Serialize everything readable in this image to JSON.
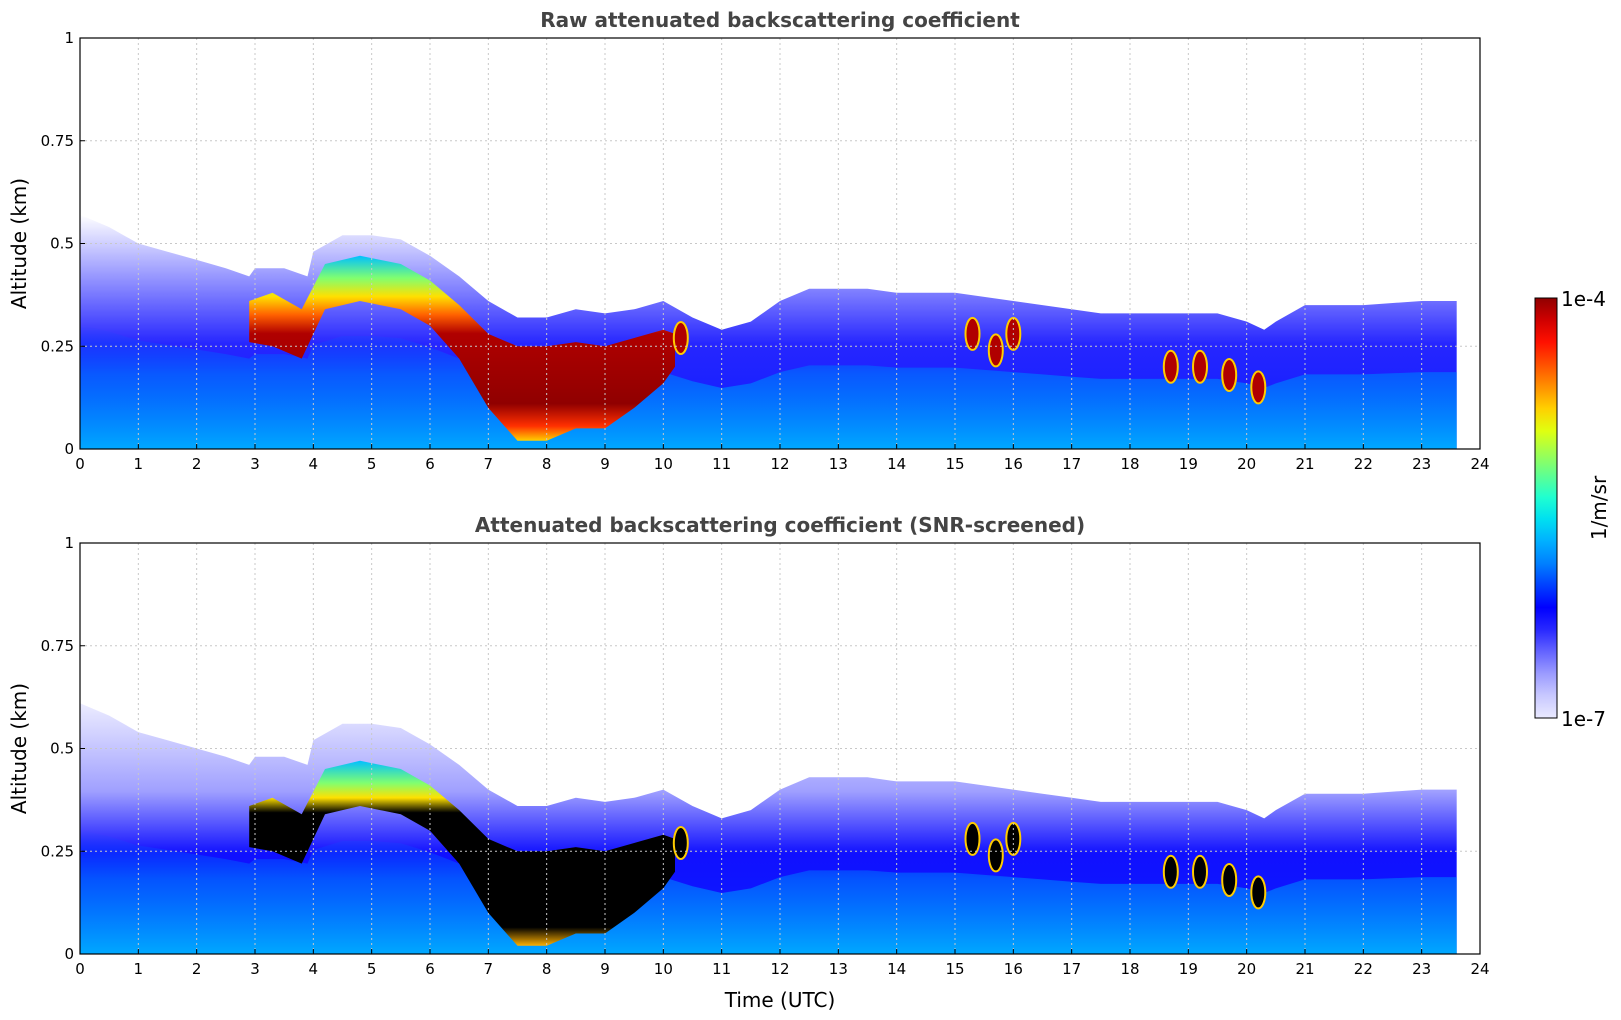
{
  "chart_data": [
    {
      "type": "heatmap",
      "title": "Raw attenuated backscattering coefficient",
      "xlabel": "",
      "ylabel": "Altitude (km)",
      "xlim": [
        0,
        24
      ],
      "ylim": [
        0,
        1
      ],
      "x_ticks": [
        "0",
        "1",
        "2",
        "3",
        "4",
        "5",
        "6",
        "7",
        "8",
        "9",
        "10",
        "11",
        "12",
        "13",
        "14",
        "15",
        "16",
        "17",
        "18",
        "19",
        "20",
        "21",
        "22",
        "23",
        "24"
      ],
      "y_ticks": [
        "0",
        "0.25",
        "0.5",
        "0.75",
        "1"
      ],
      "grid": true,
      "colormap": "jet",
      "color_scale": "log",
      "value_range": [
        "1e-7",
        "1e-4"
      ],
      "data_extent_hours": [
        0,
        23.6
      ],
      "layer_top_km": {
        "x": [
          0,
          0.5,
          1,
          1.5,
          2,
          2.5,
          2.9,
          3,
          3.5,
          3.9,
          4,
          4.5,
          5,
          5.5,
          6,
          6.5,
          7,
          7.5,
          8,
          8.5,
          9,
          9.5,
          10,
          10.5,
          11,
          11.5,
          12,
          12.5,
          13,
          13.5,
          14,
          14.5,
          15,
          15.5,
          16,
          16.5,
          17,
          17.5,
          18,
          18.5,
          19,
          19.5,
          20,
          20.3,
          20.5,
          21,
          22,
          23,
          23.6
        ],
        "y": [
          0.55,
          0.52,
          0.48,
          0.46,
          0.44,
          0.42,
          0.4,
          0.42,
          0.42,
          0.4,
          0.46,
          0.5,
          0.5,
          0.49,
          0.45,
          0.4,
          0.34,
          0.3,
          0.3,
          0.32,
          0.31,
          0.32,
          0.34,
          0.3,
          0.27,
          0.29,
          0.34,
          0.37,
          0.37,
          0.37,
          0.36,
          0.36,
          0.36,
          0.35,
          0.34,
          0.33,
          0.32,
          0.31,
          0.31,
          0.31,
          0.31,
          0.31,
          0.29,
          0.27,
          0.29,
          0.33,
          0.33,
          0.34,
          0.34
        ]
      },
      "aerosol_layer_km": {
        "x": [
          2.9,
          3.3,
          3.8,
          4.2,
          4.8,
          5.5,
          6,
          6.5,
          7,
          7.5,
          8,
          8.5,
          9,
          9.5,
          10,
          10.2
        ],
        "top": [
          0.36,
          0.38,
          0.34,
          0.45,
          0.47,
          0.45,
          0.41,
          0.35,
          0.28,
          0.25,
          0.25,
          0.26,
          0.25,
          0.27,
          0.29,
          0.28
        ],
        "bottom": [
          0.26,
          0.25,
          0.22,
          0.34,
          0.36,
          0.34,
          0.3,
          0.22,
          0.1,
          0.02,
          0.02,
          0.05,
          0.05,
          0.1,
          0.16,
          0.2
        ]
      },
      "low_clouds": [
        {
          "time_h": 10.3,
          "altitude_km": 0.27
        },
        {
          "time_h": 15.3,
          "altitude_km": 0.28
        },
        {
          "time_h": 15.7,
          "altitude_km": 0.24
        },
        {
          "time_h": 16.0,
          "altitude_km": 0.28
        },
        {
          "time_h": 18.7,
          "altitude_km": 0.2
        },
        {
          "time_h": 19.2,
          "altitude_km": 0.2
        },
        {
          "time_h": 19.7,
          "altitude_km": 0.18
        },
        {
          "time_h": 20.2,
          "altitude_km": 0.15
        }
      ]
    },
    {
      "type": "heatmap",
      "title": "Attenuated backscattering coefficient (SNR-screened)",
      "xlabel": "Time (UTC)",
      "ylabel": "Altitude (km)",
      "xlim": [
        0,
        24
      ],
      "ylim": [
        0,
        1
      ],
      "x_ticks": [
        "0",
        "1",
        "2",
        "3",
        "4",
        "5",
        "6",
        "7",
        "8",
        "9",
        "10",
        "11",
        "12",
        "13",
        "14",
        "15",
        "16",
        "17",
        "18",
        "19",
        "20",
        "21",
        "22",
        "23",
        "24"
      ],
      "y_ticks": [
        "0",
        "0.25",
        "0.5",
        "0.75",
        "1"
      ],
      "grid": true,
      "colormap": "jet",
      "color_scale": "log",
      "value_range": [
        "1e-7",
        "1e-4"
      ],
      "saturated_color": "#000000",
      "data_extent_hours": [
        0,
        23.6
      ]
    }
  ],
  "colorbar": {
    "max_label": "1e-4",
    "min_label": "1e-7",
    "unit_label": "1/m/sr",
    "colors": [
      "#eaeaff",
      "#c8c8ff",
      "#9c9cff",
      "#6464ff",
      "#2828ff",
      "#0000ff",
      "#0040ff",
      "#0080ff",
      "#00b0ff",
      "#00e0f0",
      "#20ffd0",
      "#60ff90",
      "#a0ff50",
      "#e0ff10",
      "#ffd000",
      "#ff9000",
      "#ff5000",
      "#ff1000",
      "#d00000",
      "#900000"
    ]
  }
}
